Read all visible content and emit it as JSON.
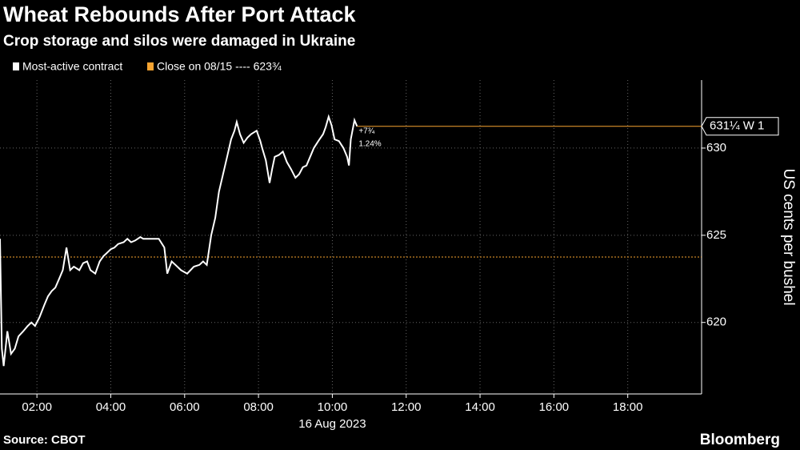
{
  "chart_data": {
    "type": "line",
    "title": "Wheat Rebounds After Port Attack",
    "subtitle": "Crop storage and silos were damaged in Ukraine",
    "series": [
      {
        "name": "Most-active contract",
        "color": "#ffffff",
        "x": [
          1.0,
          1.05,
          1.1,
          1.2,
          1.3,
          1.4,
          1.5,
          1.63,
          1.75,
          1.85,
          1.95,
          2.07,
          2.2,
          2.3,
          2.4,
          2.5,
          2.6,
          2.7,
          2.8,
          2.9,
          3.0,
          3.15,
          3.25,
          3.36,
          3.45,
          3.58,
          3.7,
          3.8,
          3.9,
          4.0,
          4.1,
          4.2,
          4.35,
          4.45,
          4.55,
          4.66,
          4.8,
          4.88,
          5.1,
          5.3,
          5.45,
          5.53,
          5.65,
          5.75,
          5.9,
          6.07,
          6.25,
          6.4,
          6.5,
          6.6,
          6.72,
          6.83,
          6.93,
          7.04,
          7.15,
          7.26,
          7.35,
          7.41,
          7.5,
          7.6,
          7.7,
          7.8,
          7.95,
          8.05,
          8.1,
          8.2,
          8.3,
          8.37,
          8.44,
          8.55,
          8.66,
          8.77,
          8.88,
          9.0,
          9.1,
          9.2,
          9.3,
          9.4,
          9.5,
          9.62,
          9.75,
          9.82,
          9.9,
          9.98,
          10.06,
          10.18,
          10.3,
          10.4,
          10.45,
          10.5,
          10.6,
          10.67
        ],
        "values": [
          624.8,
          618.5,
          617.5,
          619.5,
          618.2,
          618.5,
          619.2,
          619.5,
          619.8,
          620.0,
          619.8,
          620.3,
          621.0,
          621.5,
          621.8,
          622.0,
          622.5,
          623.0,
          624.3,
          623.0,
          623.2,
          623.0,
          623.4,
          623.5,
          623.0,
          622.8,
          623.5,
          623.8,
          624.0,
          624.2,
          624.3,
          624.5,
          624.6,
          624.8,
          624.6,
          624.7,
          624.9,
          624.8,
          624.8,
          624.8,
          624.3,
          622.8,
          623.5,
          623.3,
          623.0,
          622.8,
          623.2,
          623.3,
          623.5,
          623.3,
          625.0,
          626.0,
          627.5,
          628.5,
          629.5,
          630.5,
          631.0,
          631.5,
          630.8,
          630.3,
          630.6,
          630.8,
          631.0,
          630.4,
          630.0,
          629.3,
          628.0,
          628.8,
          629.5,
          629.6,
          629.8,
          629.2,
          628.8,
          628.3,
          628.5,
          628.9,
          629.0,
          629.5,
          630.0,
          630.4,
          630.8,
          631.2,
          631.8,
          631.3,
          630.5,
          630.4,
          630.0,
          629.5,
          629.0,
          630.5,
          631.6,
          631.25
        ]
      }
    ],
    "reference_line": {
      "name": "Close on 08/15 ---- 623¾",
      "value": 623.75,
      "color": "#f7a431"
    },
    "last_value": {
      "value": 631.25,
      "label": "631¼ W 1"
    },
    "change_labels": [
      "+7¾",
      "1.24%"
    ],
    "xlim": [
      1.0,
      20.0
    ],
    "xticks": [
      {
        "value": 2,
        "label": "02:00"
      },
      {
        "value": 4,
        "label": "04:00"
      },
      {
        "value": 6,
        "label": "06:00"
      },
      {
        "value": 8,
        "label": "08:00"
      },
      {
        "value": 10,
        "label": "10:00"
      },
      {
        "value": 12,
        "label": "12:00"
      },
      {
        "value": 14,
        "label": "14:00"
      },
      {
        "value": 16,
        "label": "16:00"
      },
      {
        "value": 18,
        "label": "18:00"
      }
    ],
    "x_date_label": "16 Aug 2023",
    "ylim": [
      615.9,
      633.9
    ],
    "yticks": [
      620,
      625,
      630
    ],
    "y_label": "US cents per bushel",
    "grid": true,
    "source": "Source: CBOT",
    "brand": "Bloomberg"
  }
}
